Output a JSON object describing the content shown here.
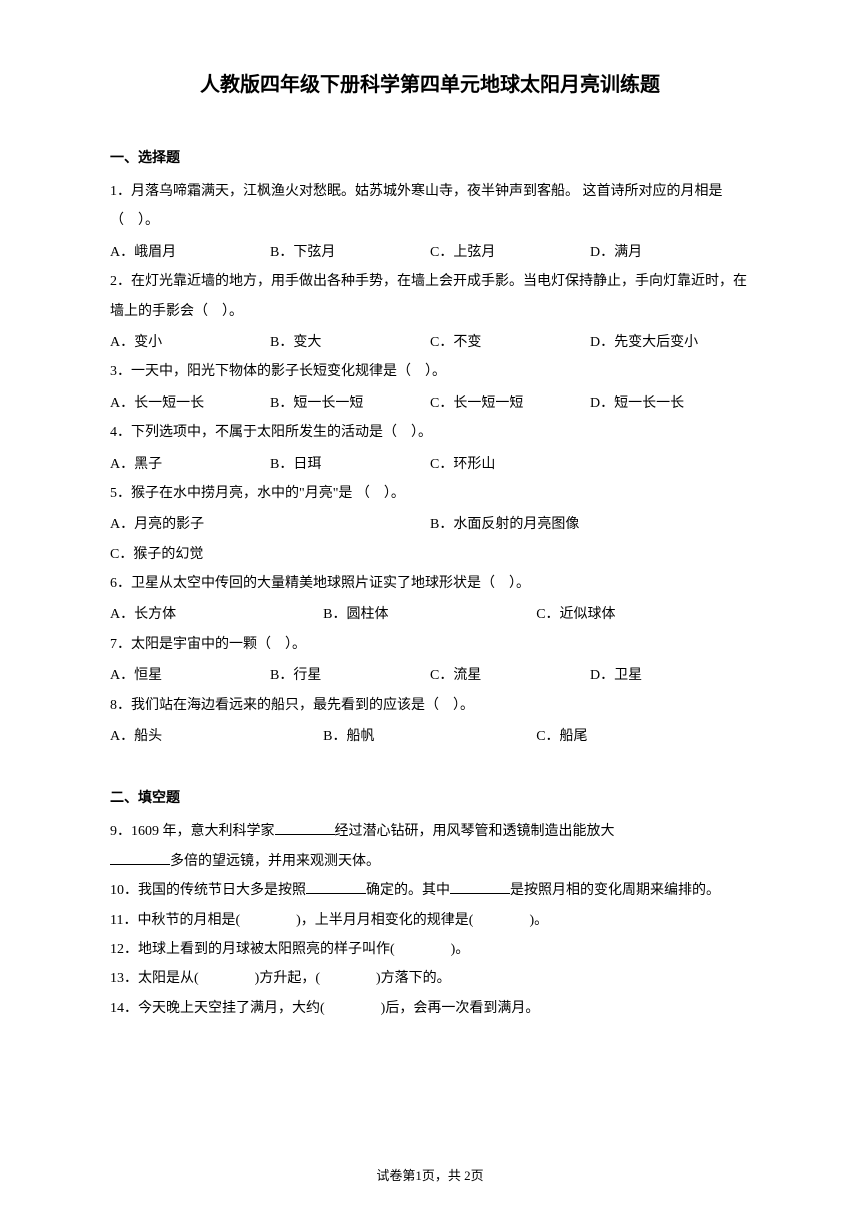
{
  "title": "人教版四年级下册科学第四单元地球太阳月亮训练题",
  "section1": {
    "header": "一、选择题",
    "q1": {
      "text": "1．月落乌啼霜满天，江枫渔火对愁眠。姑苏城外寒山寺，夜半钟声到客船。 这首诗所对应的月相是（　）。",
      "a": "A．峨眉月",
      "b": "B．下弦月",
      "c": "C．上弦月",
      "d": "D．满月"
    },
    "q2": {
      "text": "2．在灯光靠近墙的地方，用手做出各种手势，在墙上会开成手影。当电灯保持静止，手向灯靠近时，在墙上的手影会（　）。",
      "a": "A．变小",
      "b": "B．变大",
      "c": "C．不变",
      "d": "D．先变大后变小"
    },
    "q3": {
      "text": "3．一天中，阳光下物体的影子长短变化规律是（　）。",
      "a": "A．长一短一长",
      "b": "B．短一长一短",
      "c": "C．长一短一短",
      "d": "D．短一长一长"
    },
    "q4": {
      "text": "4．下列选项中，不属于太阳所发生的活动是（　）。",
      "a": "A．黑子",
      "b": "B．日珥",
      "c": "C．环形山"
    },
    "q5": {
      "text": "5．猴子在水中捞月亮，水中的\"月亮\"是 （　）。",
      "a": "A．月亮的影子",
      "b": "B．水面反射的月亮图像",
      "c": "C．猴子的幻觉"
    },
    "q6": {
      "text": "6．卫星从太空中传回的大量精美地球照片证实了地球形状是（　）。",
      "a": "A．长方体",
      "b": "B．圆柱体",
      "c": "C．近似球体"
    },
    "q7": {
      "text": "7．太阳是宇宙中的一颗（　）。",
      "a": "A．恒星",
      "b": "B．行星",
      "c": "C．流星",
      "d": "D．卫星"
    },
    "q8": {
      "text": "8．我们站在海边看远来的船只，最先看到的应该是（　）。",
      "a": "A．船头",
      "b": "B．船帆",
      "c": "C．船尾"
    }
  },
  "section2": {
    "header": "二、填空题",
    "q9a": "9．1609 年，意大利科学家",
    "q9b": "经过潜心钻研，用风琴管和透镜制造出能放大",
    "q9c": "多倍的望远镜，并用来观测天体。",
    "q10a": "10．我国的传统节日大多是按照",
    "q10b": "确定的。其中",
    "q10c": "是按照月相的变化周期来编排的。",
    "q11": "11．中秋节的月相是(　　　　)，上半月月相变化的规律是(　　　　)。",
    "q12": "12．地球上看到的月球被太阳照亮的样子叫作(　　　　)。",
    "q13": "13．太阳是从(　　　　)方升起，(　　　　)方落下的。",
    "q14": "14．今天晚上天空挂了满月，大约(　　　　)后，会再一次看到满月。"
  },
  "footer": "试卷第1页，共 2页"
}
